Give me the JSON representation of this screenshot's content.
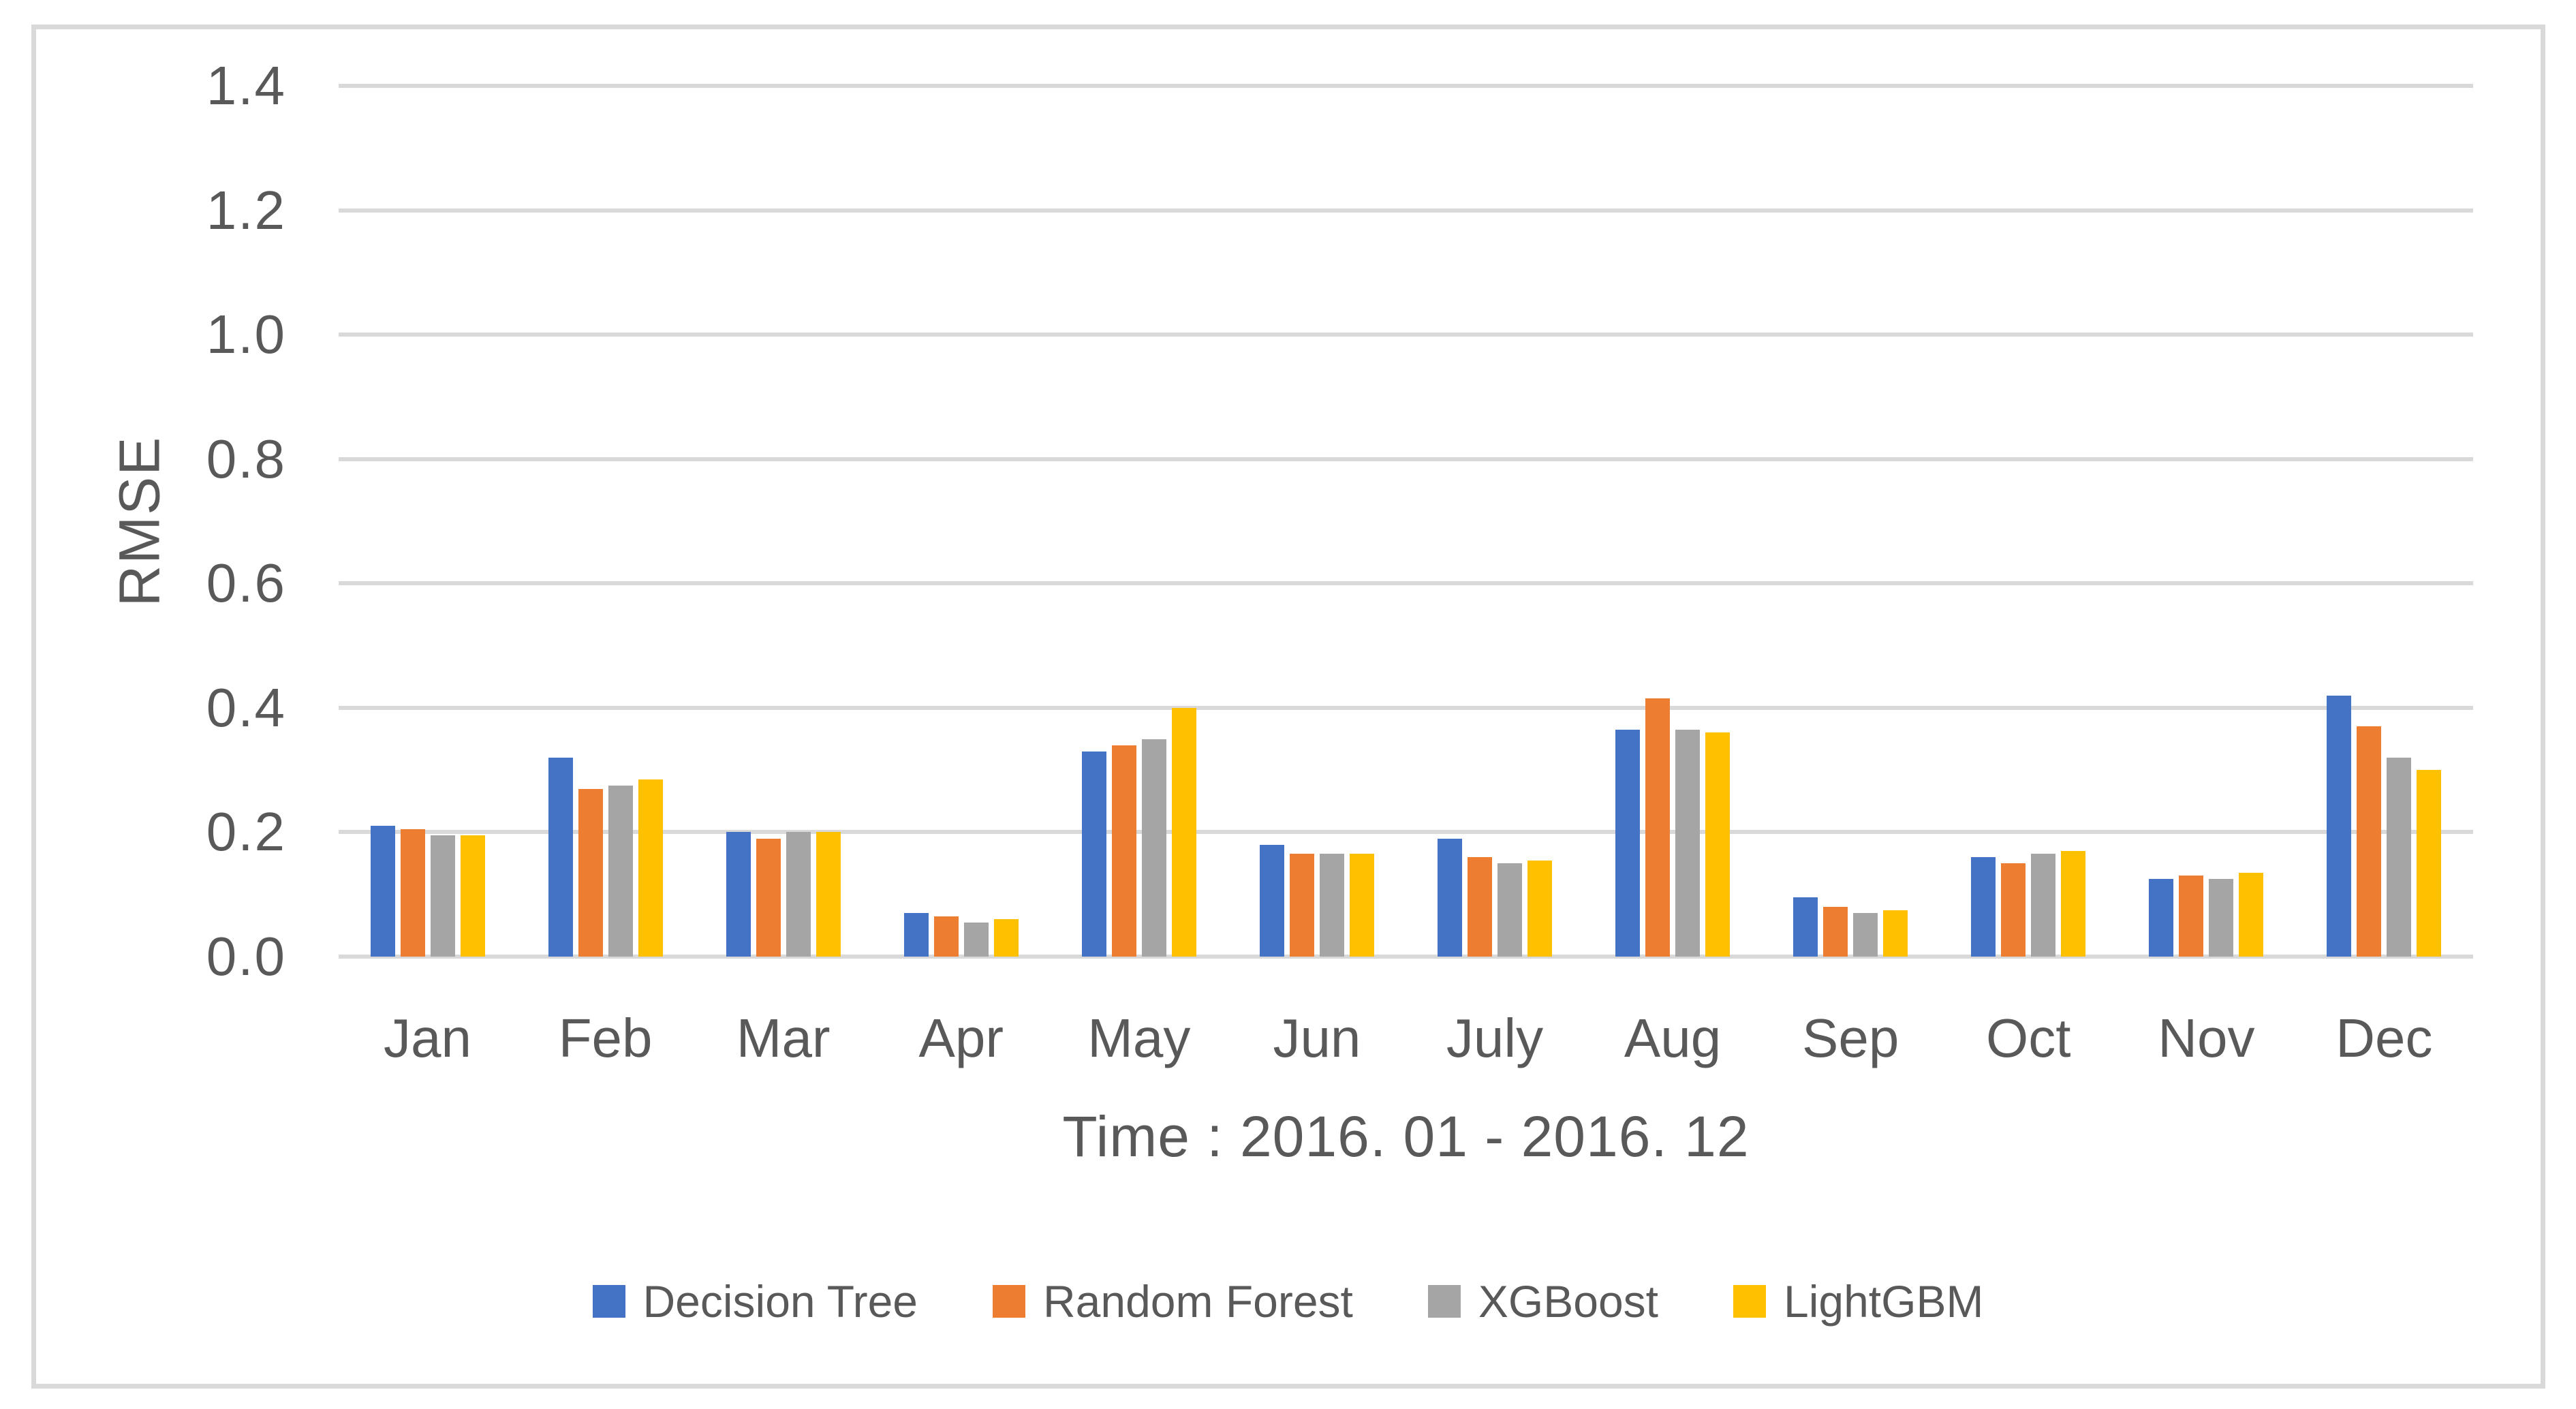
{
  "colors": {
    "background": "#FFFFFF",
    "frame_border": "#D9D9D9",
    "gridline": "#D9D9D9",
    "text": "#595959"
  },
  "chart_data": {
    "type": "bar",
    "title": "",
    "xlabel": "Time : 2016. 01 - 2016. 12",
    "ylabel": "RMSE",
    "ylim": [
      0,
      1.4
    ],
    "ytick_labels": [
      "0.0",
      "0.2",
      "0.4",
      "0.6",
      "0.8",
      "1.0",
      "1.2",
      "1.4"
    ],
    "grid": true,
    "legend_position": "bottom",
    "categories": [
      "Jan",
      "Feb",
      "Mar",
      "Apr",
      "May",
      "Jun",
      "July",
      "Aug",
      "Sep",
      "Oct",
      "Nov",
      "Dec"
    ],
    "series": [
      {
        "name": "Decision Tree",
        "color": "#4472C4",
        "values": [
          0.21,
          0.32,
          0.2,
          0.07,
          0.33,
          0.18,
          0.19,
          0.365,
          0.095,
          0.16,
          0.125,
          0.42
        ]
      },
      {
        "name": "Random Forest",
        "color": "#ED7D31",
        "values": [
          0.205,
          0.27,
          0.19,
          0.065,
          0.34,
          0.165,
          0.16,
          0.415,
          0.08,
          0.15,
          0.13,
          0.37
        ]
      },
      {
        "name": "XGBoost",
        "color": "#A5A5A5",
        "values": [
          0.195,
          0.275,
          0.2,
          0.055,
          0.35,
          0.165,
          0.15,
          0.365,
          0.07,
          0.165,
          0.125,
          0.32
        ]
      },
      {
        "name": "LightGBM",
        "color": "#FFC000",
        "values": [
          0.195,
          0.285,
          0.2,
          0.06,
          0.4,
          0.165,
          0.155,
          0.36,
          0.075,
          0.17,
          0.135,
          0.3
        ]
      }
    ]
  }
}
